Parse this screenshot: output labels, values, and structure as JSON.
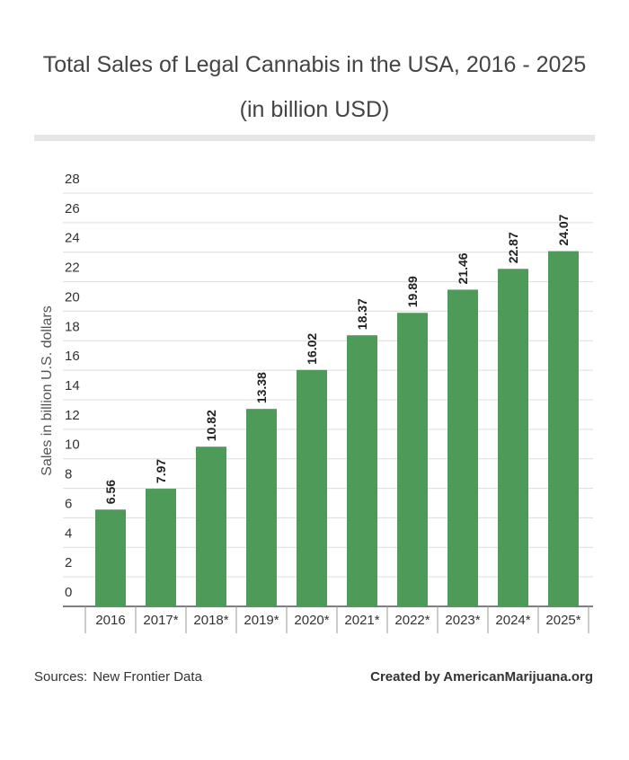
{
  "chart_data": {
    "type": "bar",
    "title": "Total Sales of Legal Cannabis in the USA, 2016 - 2025 (in billion USD)",
    "y_label": "Sales in billion U.S. dollars",
    "categories": [
      "2016",
      "2017*",
      "2018*",
      "2019*",
      "2020*",
      "2021*",
      "2022*",
      "2023*",
      "2024*",
      "2025*"
    ],
    "values": [
      6.56,
      7.97,
      10.82,
      13.38,
      16.02,
      18.37,
      19.89,
      21.46,
      22.87,
      24.07
    ],
    "color": "#4e9a58",
    "ylim": [
      0,
      28
    ],
    "yticks": [
      0,
      2,
      4,
      6,
      8,
      10,
      12,
      14,
      16,
      18,
      20,
      22,
      24,
      26,
      28
    ],
    "grid": true,
    "sources_label": "Sources:",
    "source": "New Frontier Data",
    "credit": "Created by AmericanMarijuana.org"
  }
}
